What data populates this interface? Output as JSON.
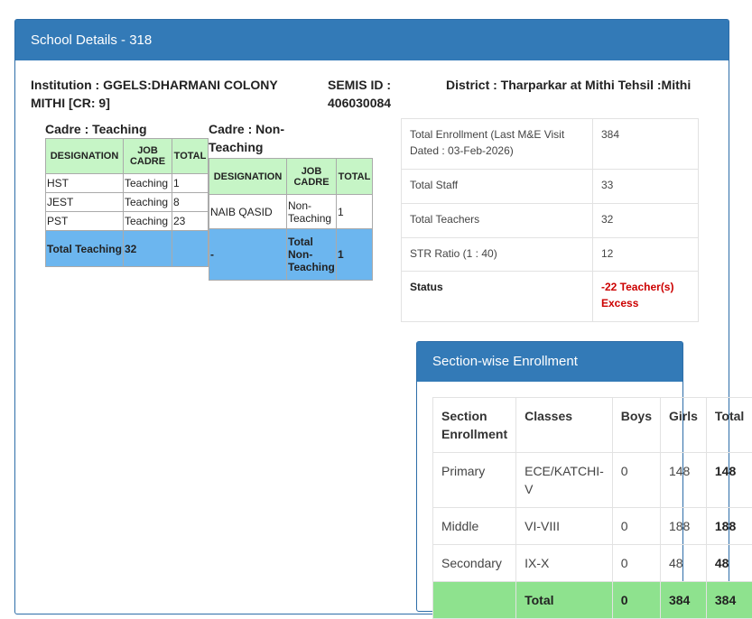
{
  "panel_title": "School Details - 318",
  "institution": "Institution : GGELS:DHARMANI COLONY MITHI [CR: 9]",
  "semis": "SEMIS ID : 406030084",
  "district": "District : Tharparkar at Mithi Tehsil :Mithi",
  "teaching": {
    "title": "Cadre : Teaching",
    "headers": [
      "DESIGNATION",
      "JOB CADRE",
      "TOTAL"
    ],
    "rows": [
      [
        "HST",
        "Teaching",
        "1"
      ],
      [
        "JEST",
        "Teaching",
        "8"
      ],
      [
        "PST",
        "Teaching",
        "23"
      ]
    ],
    "total": [
      "Total Teaching",
      "32",
      ""
    ]
  },
  "nonteaching": {
    "title": "Cadre : Non-Teaching",
    "headers": [
      "DESIGNATION",
      "JOB CADRE",
      "TOTAL"
    ],
    "rows": [
      [
        "NAIB QASID",
        "Non-Teaching",
        "1"
      ]
    ],
    "total": [
      "-",
      "Total Non-Teaching",
      "1"
    ]
  },
  "info": [
    [
      "Total Enrollment (Last M&E Visit Dated : 03-Feb-2026)",
      "384"
    ],
    [
      "Total Staff",
      "33"
    ],
    [
      "Total Teachers",
      "32"
    ],
    [
      "STR Ratio (1 : 40)",
      "12"
    ]
  ],
  "status_label": "Status",
  "status_value": "-22 Teacher(s) Excess",
  "status_color": "#cc0000",
  "section_title": "Section-wise Enrollment",
  "section": {
    "headers": [
      "Section Enrollment",
      "Classes",
      "Boys",
      "Girls",
      "Total"
    ],
    "rows": [
      [
        "Primary",
        "ECE/KATCHI-V",
        "0",
        "148",
        "148"
      ],
      [
        "Middle",
        "VI-VIII",
        "0",
        "188",
        "188"
      ],
      [
        "Secondary",
        "IX-X",
        "0",
        "48",
        "48"
      ]
    ],
    "total": [
      "",
      "Total",
      "0",
      "384",
      "384"
    ]
  }
}
